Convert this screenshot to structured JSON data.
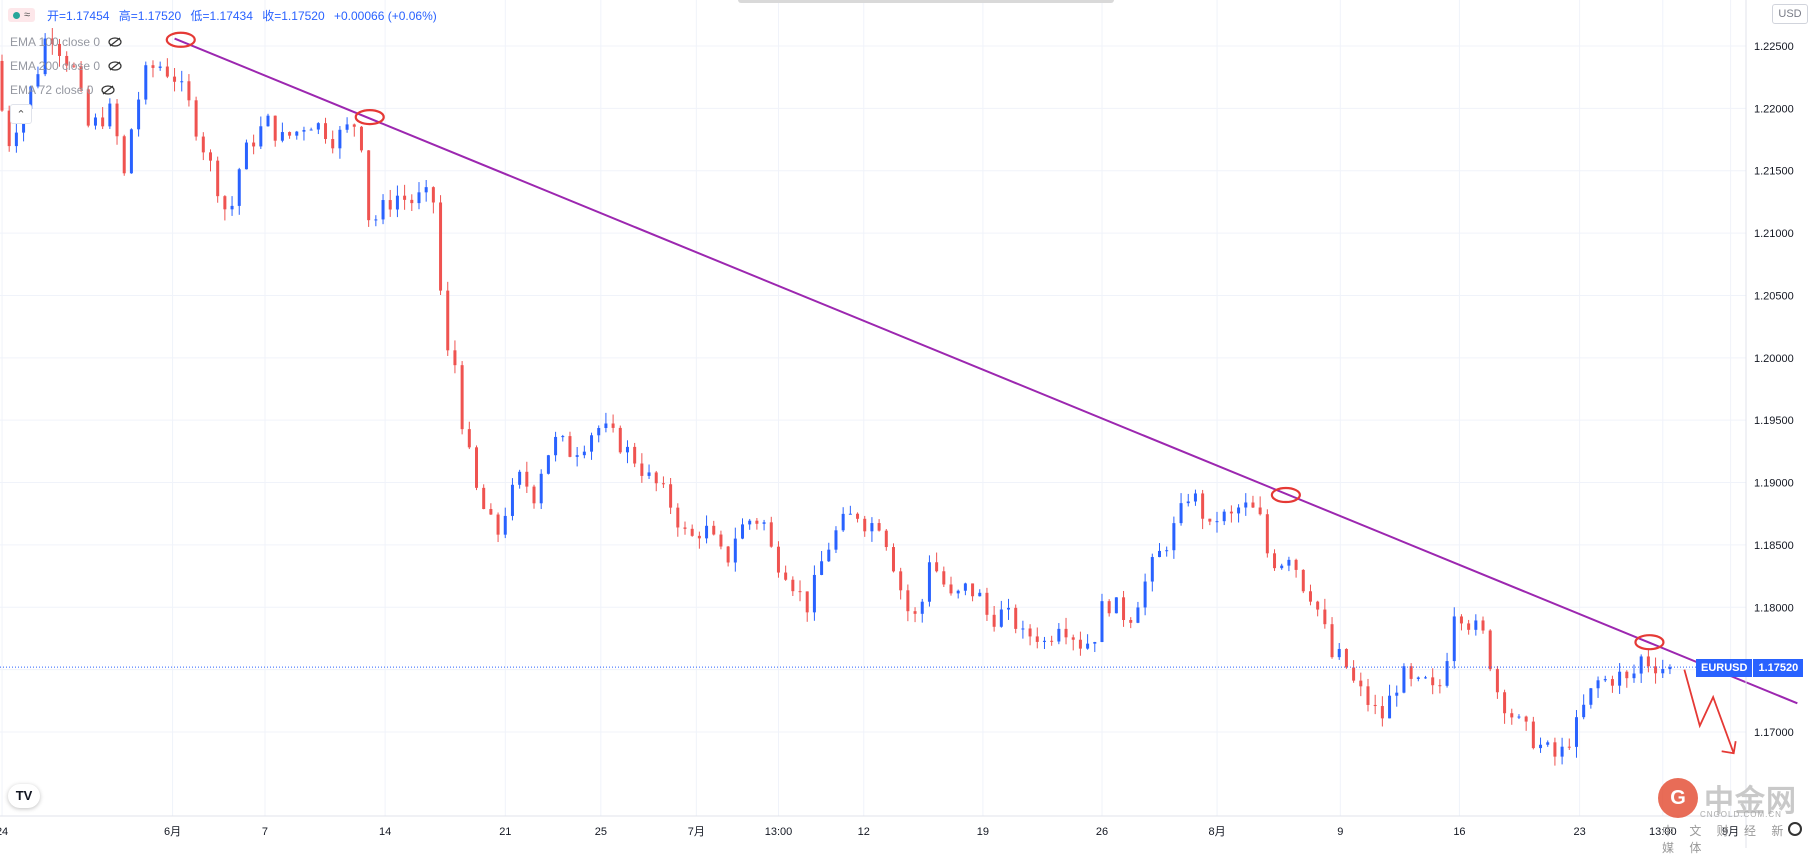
{
  "legend": {
    "pill_text": "≈",
    "open": "开=1.17454",
    "high": "高=1.17520",
    "low": "低=1.17434",
    "close": "收=1.17520",
    "change": "+0.00066 (+0.06%)"
  },
  "indicators": [
    {
      "label": "EMA 100 close 0"
    },
    {
      "label": "EMA 200 close 0"
    },
    {
      "label": "EMA 72 close 0"
    }
  ],
  "currency": "USD",
  "price_tag": {
    "symbol": "EURUSD",
    "value": "1.17520"
  },
  "tv_logo": "TV",
  "watermark": {
    "brand": "中金网",
    "domain": "CNGOLD.COM.CN",
    "tagline": "中 文 财 经 新 媒 体"
  },
  "chart_data": {
    "type": "candlestick",
    "symbol": "EURUSD",
    "ylim": [
      1.1655,
      1.2295
    ],
    "y_ticks": [
      "1.22500",
      "1.22000",
      "1.21500",
      "1.21000",
      "1.20500",
      "1.20000",
      "1.19500",
      "1.19000",
      "1.18500",
      "1.18000",
      "1.17500",
      "1.17000"
    ],
    "y_tick_values": [
      1.225,
      1.22,
      1.215,
      1.21,
      1.205,
      1.2,
      1.195,
      1.19,
      1.185,
      1.18,
      1.175,
      1.17
    ],
    "x_ticks": [
      "24",
      "6月",
      "7",
      "14",
      "21",
      "25",
      "7月",
      "13:00",
      "12",
      "19",
      "26",
      "8月",
      "9",
      "16",
      "23",
      "13:00",
      "9月"
    ],
    "x_tick_index": [
      2,
      168,
      258,
      375,
      492,
      585,
      678,
      758,
      841,
      957,
      1073,
      1185,
      1305,
      1421,
      1538,
      1619,
      1685
    ],
    "last_price": 1.1752,
    "grid": true,
    "colors": {
      "up": "#2962ff",
      "down": "#ef5350",
      "trendline": "#9c27b0",
      "annotation": "#e53935",
      "price_line": "#2962ff"
    },
    "path": [
      [
        0,
        1.2238
      ],
      [
        12,
        1.217
      ],
      [
        25,
        1.2195
      ],
      [
        40,
        1.2225
      ],
      [
        52,
        1.2265
      ],
      [
        65,
        1.2245
      ],
      [
        78,
        1.223
      ],
      [
        90,
        1.2185
      ],
      [
        102,
        1.219
      ],
      [
        115,
        1.22
      ],
      [
        125,
        1.214
      ],
      [
        135,
        1.2195
      ],
      [
        148,
        1.223
      ],
      [
        160,
        1.2235
      ],
      [
        175,
        1.2225
      ],
      [
        188,
        1.2205
      ],
      [
        198,
        1.218
      ],
      [
        212,
        1.215
      ],
      [
        228,
        1.211
      ],
      [
        240,
        1.216
      ],
      [
        252,
        1.2175
      ],
      [
        265,
        1.219
      ],
      [
        278,
        1.2175
      ],
      [
        292,
        1.218
      ],
      [
        305,
        1.219
      ],
      [
        318,
        1.2185
      ],
      [
        330,
        1.2175
      ],
      [
        345,
        1.2185
      ],
      [
        355,
        1.219
      ],
      [
        365,
        1.2105
      ],
      [
        378,
        1.212
      ],
      [
        392,
        1.213
      ],
      [
        405,
        1.2125
      ],
      [
        418,
        1.213
      ],
      [
        428,
        1.2125
      ],
      [
        438,
        1.2005
      ],
      [
        448,
        1.1995
      ],
      [
        455,
        1.195
      ],
      [
        468,
        1.1895
      ],
      [
        480,
        1.187
      ],
      [
        490,
        1.186
      ],
      [
        500,
        1.1885
      ],
      [
        512,
        1.1905
      ],
      [
        525,
        1.189
      ],
      [
        535,
        1.192
      ],
      [
        548,
        1.1935
      ],
      [
        560,
        1.1925
      ],
      [
        572,
        1.193
      ],
      [
        585,
        1.1945
      ],
      [
        598,
        1.194
      ],
      [
        610,
        1.193
      ],
      [
        622,
        1.192
      ],
      [
        635,
        1.1905
      ],
      [
        648,
        1.1895
      ],
      [
        660,
        1.188
      ],
      [
        670,
        1.186
      ],
      [
        680,
        1.1855
      ],
      [
        690,
        1.1865
      ],
      [
        702,
        1.185
      ],
      [
        712,
        1.1835
      ],
      [
        722,
        1.186
      ],
      [
        735,
        1.187
      ],
      [
        748,
        1.187
      ],
      [
        758,
        1.184
      ],
      [
        770,
        1.183
      ],
      [
        780,
        1.1815
      ],
      [
        792,
        1.18
      ],
      [
        802,
        1.183
      ],
      [
        815,
        1.1855
      ],
      [
        828,
        1.187
      ],
      [
        840,
        1.1875
      ],
      [
        850,
        1.1865
      ],
      [
        860,
        1.187
      ],
      [
        870,
        1.185
      ],
      [
        880,
        1.182
      ],
      [
        890,
        1.1795
      ],
      [
        900,
        1.179
      ],
      [
        910,
        1.184
      ],
      [
        920,
        1.1825
      ],
      [
        932,
        1.1805
      ],
      [
        945,
        1.1815
      ],
      [
        958,
        1.181
      ],
      [
        968,
        1.179
      ],
      [
        980,
        1.1795
      ],
      [
        992,
        1.179
      ],
      [
        1002,
        1.1775
      ],
      [
        1012,
        1.178
      ],
      [
        1024,
        1.177
      ],
      [
        1035,
        1.179
      ],
      [
        1048,
        1.178
      ],
      [
        1058,
        1.177
      ],
      [
        1070,
        1.1775
      ],
      [
        1080,
        1.1805
      ],
      [
        1092,
        1.18
      ],
      [
        1104,
        1.179
      ],
      [
        1115,
        1.181
      ],
      [
        1128,
        1.1835
      ],
      [
        1140,
        1.185
      ],
      [
        1152,
        1.187
      ],
      [
        1162,
        1.189
      ],
      [
        1172,
        1.1885
      ],
      [
        1182,
        1.186
      ],
      [
        1192,
        1.1875
      ],
      [
        1202,
        1.187
      ],
      [
        1212,
        1.188
      ],
      [
        1222,
        1.188
      ],
      [
        1232,
        1.187
      ],
      [
        1240,
        1.184
      ],
      [
        1250,
        1.1835
      ],
      [
        1262,
        1.1845
      ],
      [
        1272,
        1.182
      ],
      [
        1282,
        1.181
      ],
      [
        1292,
        1.179
      ],
      [
        1302,
        1.176
      ],
      [
        1312,
        1.176
      ],
      [
        1322,
        1.174
      ],
      [
        1332,
        1.173
      ],
      [
        1342,
        1.1718
      ],
      [
        1352,
        1.1712
      ],
      [
        1362,
        1.1735
      ],
      [
        1372,
        1.1745
      ],
      [
        1382,
        1.1735
      ],
      [
        1392,
        1.174
      ],
      [
        1402,
        1.173
      ],
      [
        1412,
        1.1745
      ],
      [
        1418,
        1.18
      ],
      [
        1428,
        1.1795
      ],
      [
        1438,
        1.1785
      ],
      [
        1448,
        1.178
      ],
      [
        1455,
        1.176
      ],
      [
        1462,
        1.1735
      ],
      [
        1472,
        1.172
      ],
      [
        1482,
        1.1708
      ],
      [
        1492,
        1.17
      ],
      [
        1502,
        1.169
      ],
      [
        1512,
        1.1685
      ],
      [
        1522,
        1.1678
      ],
      [
        1530,
        1.169
      ],
      [
        1540,
        1.1705
      ],
      [
        1550,
        1.1725
      ],
      [
        1560,
        1.174
      ],
      [
        1572,
        1.1742
      ],
      [
        1582,
        1.1745
      ],
      [
        1592,
        1.1738
      ],
      [
        1602,
        1.176
      ],
      [
        1612,
        1.1755
      ],
      [
        1622,
        1.1752
      ],
      [
        1628,
        1.1752
      ]
    ],
    "trendline": [
      [
        170,
        1.2256
      ],
      [
        1750,
        1.1723
      ]
    ],
    "annotations": [
      {
        "type": "ellipse",
        "at": [
          176,
          1.2255
        ]
      },
      {
        "type": "ellipse",
        "at": [
          360,
          1.2193
        ]
      },
      {
        "type": "ellipse",
        "at": [
          1252,
          1.189
        ]
      },
      {
        "type": "ellipse",
        "at": [
          1606,
          1.1772
        ]
      }
    ],
    "projection": [
      [
        1640,
        1.175
      ],
      [
        1655,
        1.1705
      ],
      [
        1668,
        1.1728
      ],
      [
        1688,
        1.1683
      ]
    ]
  }
}
